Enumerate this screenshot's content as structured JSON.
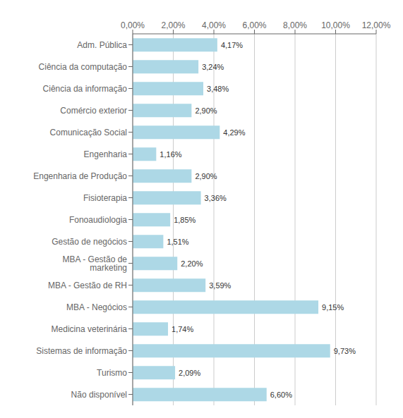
{
  "chart_data": {
    "type": "bar",
    "orientation": "horizontal",
    "categories": [
      "Adm. Pública",
      "Ciência da computação",
      "Ciência da informação",
      "Comércio exterior",
      "Comunicação Social",
      "Engenharia",
      "Engenharia de Produção",
      "Fisioterapia",
      "Fonoaudiologia",
      "Gestão de negócios",
      "MBA - Gestão de marketing",
      "MBA - Gestão de RH",
      "MBA - Negócios",
      "Medicina veterinária",
      "Sistemas de informação",
      "Turismo",
      "Não disponível"
    ],
    "values": [
      4.17,
      3.24,
      3.48,
      2.9,
      4.29,
      1.16,
      2.9,
      3.36,
      1.85,
      1.51,
      2.2,
      3.59,
      9.15,
      1.74,
      9.73,
      2.09,
      6.6
    ],
    "value_labels": [
      "4,17%",
      "3,24%",
      "3,48%",
      "2,90%",
      "4,29%",
      "1,16%",
      "2,90%",
      "3,36%",
      "1,85%",
      "1,51%",
      "2,20%",
      "3,59%",
      "9,15%",
      "1,74%",
      "9,73%",
      "2,09%",
      "6,60%"
    ],
    "color": "#add8e6",
    "xlim": [
      0,
      12
    ],
    "xticks": [
      {
        "value": 0,
        "label": "0,00%"
      },
      {
        "value": 2,
        "label": "2,00%"
      },
      {
        "value": 4,
        "label": "4,00%"
      },
      {
        "value": 6,
        "label": "6,00%"
      },
      {
        "value": 8,
        "label": "8,00%"
      },
      {
        "value": 10,
        "label": "10,00%"
      },
      {
        "value": 12,
        "label": "12,00%"
      }
    ],
    "grid": true,
    "data_labels": true
  }
}
